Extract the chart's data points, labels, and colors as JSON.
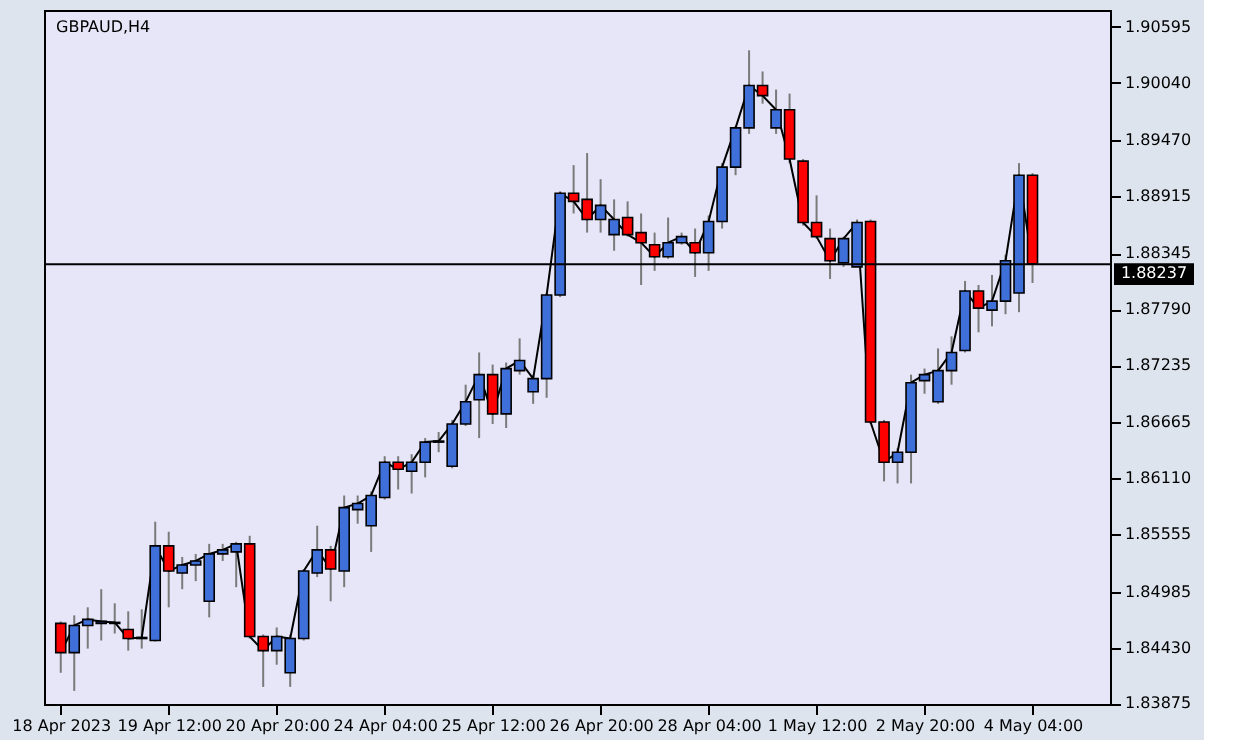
{
  "chart_data": {
    "type": "candlestick",
    "title": "GBPAUD,H4",
    "categories": [
      "18 Apr 2023",
      null,
      null,
      null,
      null,
      null,
      null,
      null,
      "19 Apr 12:00",
      null,
      null,
      null,
      null,
      null,
      null,
      null,
      "20 Apr 20:00",
      null,
      null,
      null,
      null,
      null,
      null,
      null,
      "24 Apr 04:00",
      null,
      null,
      null,
      null,
      null,
      null,
      null,
      "25 Apr 12:00",
      null,
      null,
      null,
      null,
      null,
      null,
      null,
      "26 Apr 20:00",
      null,
      null,
      null,
      null,
      null,
      null,
      null,
      "28 Apr 04:00",
      null,
      null,
      null,
      null,
      null,
      null,
      null,
      "1 May 12:00",
      null,
      null,
      null,
      null,
      null,
      null,
      null,
      "2 May 20:00",
      null,
      null,
      null,
      null,
      null,
      null,
      null,
      "4 May 04:00"
    ],
    "ohlc": [
      [
        1.8467,
        1.8469,
        1.8418,
        1.8438
      ],
      [
        1.8438,
        1.8475,
        1.84,
        1.8465
      ],
      [
        1.8465,
        1.8483,
        1.8442,
        1.8471
      ],
      [
        1.8467,
        1.8501,
        1.845,
        1.8469
      ],
      [
        1.8467,
        1.8487,
        1.8457,
        1.8468
      ],
      [
        1.8461,
        1.8479,
        1.844,
        1.8452
      ],
      [
        1.8452,
        1.8481,
        1.8442,
        1.8453
      ],
      [
        1.845,
        1.8568,
        1.8449,
        1.8544
      ],
      [
        1.8544,
        1.8558,
        1.8483,
        1.8519
      ],
      [
        1.8517,
        1.8533,
        1.8501,
        1.8525
      ],
      [
        1.8525,
        1.8536,
        1.8509,
        1.8529
      ],
      [
        1.8489,
        1.8546,
        1.8473,
        1.8536
      ],
      [
        1.8536,
        1.8546,
        1.8529,
        1.854
      ],
      [
        1.8538,
        1.8548,
        1.8503,
        1.8546
      ],
      [
        1.8546,
        1.8554,
        1.8452,
        1.8454
      ],
      [
        1.8454,
        1.8456,
        1.8404,
        1.844
      ],
      [
        1.844,
        1.8463,
        1.8426,
        1.8454
      ],
      [
        1.8418,
        1.8456,
        1.8404,
        1.8452
      ],
      [
        1.8452,
        1.8521,
        1.845,
        1.8519
      ],
      [
        1.8517,
        1.8564,
        1.8513,
        1.854
      ],
      [
        1.854,
        1.8544,
        1.8489,
        1.8521
      ],
      [
        1.8519,
        1.8594,
        1.8503,
        1.8582
      ],
      [
        1.858,
        1.8594,
        1.8566,
        1.8586
      ],
      [
        1.8564,
        1.8598,
        1.8538,
        1.8594
      ],
      [
        1.8592,
        1.8633,
        1.859,
        1.8627
      ],
      [
        1.8627,
        1.8633,
        1.86,
        1.862
      ],
      [
        1.8618,
        1.8635,
        1.8596,
        1.8627
      ],
      [
        1.8627,
        1.8651,
        1.8612,
        1.8647
      ],
      [
        1.8647,
        1.8657,
        1.8637,
        1.8648
      ],
      [
        1.8623,
        1.8669,
        1.8621,
        1.8665
      ],
      [
        1.8665,
        1.8704,
        1.8663,
        1.8687
      ],
      [
        1.8689,
        1.8736,
        1.8651,
        1.8714
      ],
      [
        1.8714,
        1.8724,
        1.8665,
        1.8675
      ],
      [
        1.8675,
        1.8726,
        1.8661,
        1.872
      ],
      [
        1.8718,
        1.875,
        1.8714,
        1.8728
      ],
      [
        1.8697,
        1.8714,
        1.8685,
        1.871
      ],
      [
        1.871,
        1.8795,
        1.8691,
        1.8793
      ],
      [
        1.8793,
        1.8896,
        1.8791,
        1.8894
      ],
      [
        1.8894,
        1.8922,
        1.8874,
        1.8886
      ],
      [
        1.8888,
        1.8934,
        1.8855,
        1.8868
      ],
      [
        1.8868,
        1.8908,
        1.8855,
        1.8882
      ],
      [
        1.8853,
        1.8888,
        1.8837,
        1.8868
      ],
      [
        1.887,
        1.8886,
        1.8851,
        1.8853
      ],
      [
        1.8855,
        1.8874,
        1.8803,
        1.8845
      ],
      [
        1.8843,
        1.8855,
        1.8817,
        1.8831
      ],
      [
        1.8831,
        1.887,
        1.8829,
        1.8845
      ],
      [
        1.8845,
        1.8855,
        1.8843,
        1.8851
      ],
      [
        1.8845,
        1.8859,
        1.8811,
        1.8835
      ],
      [
        1.8835,
        1.8872,
        1.8817,
        1.8866
      ],
      [
        1.8866,
        1.8924,
        1.8859,
        1.892
      ],
      [
        1.892,
        1.8961,
        1.8912,
        1.8959
      ],
      [
        1.8959,
        1.9036,
        1.8953,
        1.9001
      ],
      [
        1.9001,
        1.9015,
        1.8983,
        1.8991
      ],
      [
        1.8959,
        1.8997,
        1.8953,
        1.8977
      ],
      [
        1.8977,
        1.8993,
        1.8924,
        1.8928
      ],
      [
        1.8926,
        1.8928,
        1.8862,
        1.8865
      ],
      [
        1.8865,
        1.8892,
        1.8849,
        1.8851
      ],
      [
        1.8849,
        1.8859,
        1.8809,
        1.8827
      ],
      [
        1.8825,
        1.8851,
        1.8821,
        1.8849
      ],
      [
        1.8821,
        1.8868,
        1.8821,
        1.8865
      ],
      [
        1.8866,
        1.8868,
        1.8665,
        1.8667
      ],
      [
        1.8667,
        1.8669,
        1.8608,
        1.8627
      ],
      [
        1.8627,
        1.8641,
        1.8606,
        1.8637
      ],
      [
        1.8637,
        1.8714,
        1.8606,
        1.8706
      ],
      [
        1.8708,
        1.872,
        1.8695,
        1.8714
      ],
      [
        1.8687,
        1.874,
        1.8685,
        1.8718
      ],
      [
        1.8718,
        1.8752,
        1.8704,
        1.8736
      ],
      [
        1.8738,
        1.8807,
        1.8736,
        1.8797
      ],
      [
        1.8797,
        1.8803,
        1.8756,
        1.878
      ],
      [
        1.8778,
        1.8813,
        1.8762,
        1.8787
      ],
      [
        1.8787,
        1.8833,
        1.8774,
        1.8827
      ],
      [
        1.8795,
        1.8924,
        1.8776,
        1.8912
      ],
      [
        1.8912,
        1.8914,
        1.8805,
        1.8824
      ]
    ],
    "colors": [
      "#ff0000",
      "#3f6fd8",
      "#3f6fd8",
      "#3f6fd8",
      "#3f6fd8",
      "#ff0000",
      "#3f6fd8",
      "#3f6fd8",
      "#ff0000",
      "#3f6fd8",
      "#3f6fd8",
      "#3f6fd8",
      "#3f6fd8",
      "#3f6fd8",
      "#ff0000",
      "#ff0000",
      "#3f6fd8",
      "#3f6fd8",
      "#3f6fd8",
      "#3f6fd8",
      "#ff0000",
      "#3f6fd8",
      "#3f6fd8",
      "#3f6fd8",
      "#3f6fd8",
      "#ff0000",
      "#3f6fd8",
      "#3f6fd8",
      "#3f6fd8",
      "#3f6fd8",
      "#3f6fd8",
      "#3f6fd8",
      "#ff0000",
      "#3f6fd8",
      "#3f6fd8",
      "#3f6fd8",
      "#3f6fd8",
      "#3f6fd8",
      "#ff0000",
      "#ff0000",
      "#3f6fd8",
      "#3f6fd8",
      "#ff0000",
      "#ff0000",
      "#ff0000",
      "#3f6fd8",
      "#3f6fd8",
      "#ff0000",
      "#3f6fd8",
      "#3f6fd8",
      "#3f6fd8",
      "#3f6fd8",
      "#ff0000",
      "#3f6fd8",
      "#ff0000",
      "#ff0000",
      "#ff0000",
      "#ff0000",
      "#3f6fd8",
      "#3f6fd8",
      "#ff0000",
      "#ff0000",
      "#3f6fd8",
      "#3f6fd8",
      "#3f6fd8",
      "#3f6fd8",
      "#3f6fd8",
      "#3f6fd8",
      "#ff0000",
      "#3f6fd8",
      "#3f6fd8",
      "#3f6fd8",
      "#ff0000"
    ],
    "series": [
      {
        "type": "line",
        "color": "#000000",
        "values": [
          1.8438,
          1.8465,
          1.8471,
          1.8469,
          1.8468,
          1.8452,
          1.8453,
          1.8544,
          1.8519,
          1.8525,
          1.8529,
          1.8536,
          1.854,
          1.8546,
          1.8454,
          1.844,
          1.8454,
          1.8452,
          1.8519,
          1.854,
          1.8521,
          1.8582,
          1.8586,
          1.8594,
          1.8627,
          1.862,
          1.8627,
          1.8647,
          1.8648,
          1.8665,
          1.8687,
          1.8714,
          1.8675,
          1.872,
          1.8728,
          1.871,
          1.8793,
          1.8894,
          1.8886,
          1.8868,
          1.8882,
          1.8868,
          1.8853,
          1.8845,
          1.8831,
          1.8845,
          1.8851,
          1.8835,
          1.8866,
          1.892,
          1.8959,
          1.9001,
          1.8991,
          1.8977,
          1.8928,
          1.8865,
          1.8851,
          1.8827,
          1.8849,
          1.8865,
          1.8667,
          1.8627,
          1.8637,
          1.8706,
          1.8714,
          1.8718,
          1.8736,
          1.8797,
          1.878,
          1.8787,
          1.8827,
          1.8912,
          1.8824
        ]
      }
    ],
    "ylim": [
      1.8387,
      1.9076
    ],
    "yticks": [
      1.90595,
      {
        "value": 1.9004,
        "label": "1.90040"
      },
      {
        "value": 1.8947,
        "label": "1.89470"
      },
      1.88915,
      1.88345,
      {
        "value": 1.8779,
        "label": "1.87790"
      },
      1.87235,
      1.86665,
      {
        "value": 1.8611,
        "label": "1.86110"
      },
      1.85555,
      1.84985,
      {
        "value": 1.8443,
        "label": "1.84430"
      },
      1.83875
    ],
    "ref_lines": [
      {
        "axis": "y",
        "value": 1.88237,
        "label": "1.88237",
        "color": "#000000",
        "line_style": "solid"
      }
    ],
    "grid": false
  }
}
